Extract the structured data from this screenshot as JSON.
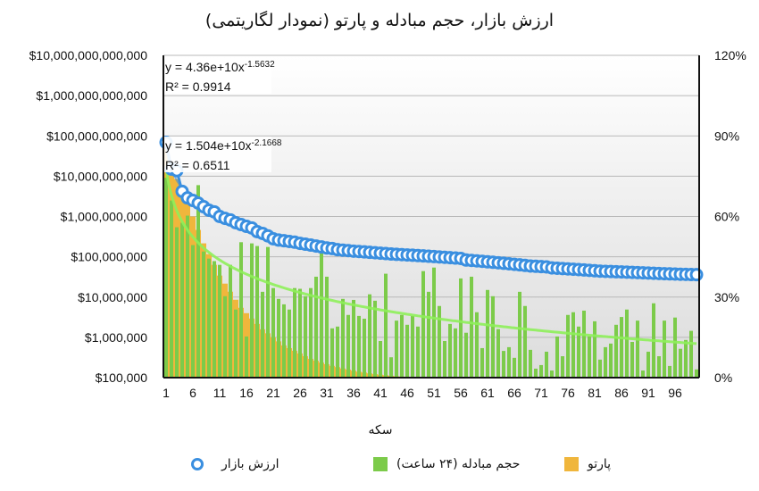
{
  "chart_data": {
    "type": "bar+line",
    "title": "ارزش بازار، حجم مبادله و پارتو (نمودار لگاریتمی)",
    "xlabel": "سکه",
    "x_ticks": [
      "1",
      "6",
      "11",
      "16",
      "21",
      "26",
      "31",
      "36",
      "41",
      "46",
      "51",
      "56",
      "61",
      "66",
      "71",
      "76",
      "81",
      "86",
      "91",
      "96"
    ],
    "x_range": [
      1,
      100
    ],
    "y_left": {
      "scale": "log",
      "range": [
        100000,
        10000000000000
      ],
      "ticks": [
        "$100,000",
        "$1,000,000",
        "$10,000,000",
        "$100,000,000",
        "$1,000,000,000",
        "$10,000,000,000",
        "$100,000,000,000",
        "$1,000,000,000,000",
        "$10,000,000,000,000"
      ]
    },
    "y_right": {
      "range": [
        0,
        120
      ],
      "ticks": [
        "0%",
        "30%",
        "60%",
        "90%",
        "120%"
      ]
    },
    "grid": true,
    "legend_position": "bottom",
    "series": [
      {
        "name": "ارزش بازار",
        "type": "line-markers",
        "axis": "left",
        "color": "#3a8fe0",
        "values": [
          69000000000.0,
          15000000000.0,
          13700000000.0,
          4200000000.0,
          2900000000.0,
          2500000000.0,
          2150000000.0,
          1750000000.0,
          1430000000.0,
          1300000000.0,
          1000000000.0,
          900000000.0,
          820000000.0,
          700000000.0,
          630000000.0,
          570000000.0,
          520000000.0,
          420000000.0,
          380000000.0,
          330000000.0,
          280000000.0,
          260000000.0,
          250000000.0,
          240000000.0,
          230000000.0,
          215000000.0,
          205000000.0,
          195000000.0,
          185000000.0,
          175000000.0,
          165000000.0,
          160000000.0,
          150000000.0,
          146000000.0,
          142000000.0,
          138000000.0,
          135000000.0,
          132000000.0,
          129000000.0,
          126000000.0,
          123000000.0,
          120000000.0,
          117000000.0,
          115000000.0,
          113000000.0,
          111000000.0,
          109000000.0,
          107000000.0,
          105000000.0,
          103000000.0,
          101000000.0,
          99000000.0,
          97000000.0,
          95000000.0,
          93000000.0,
          91000000.0,
          83000000.0,
          81000000.0,
          79000000.0,
          77000000.0,
          75000000.0,
          73000000.0,
          71000000.0,
          69000000.0,
          67000000.0,
          65000000.0,
          63000000.0,
          61000000.0,
          59000000.0,
          58000000.0,
          57000000.0,
          56000000.0,
          53000000.0,
          52000000.0,
          51000000.0,
          50000000.0,
          49000000.0,
          48000000.0,
          47000000.0,
          46000000.0,
          45000000.0,
          44000000.0,
          43500000.0,
          43000000.0,
          42500000.0,
          42000000.0,
          41500000.0,
          41000000.0,
          40500000.0,
          40000000.0,
          39500000.0,
          39000000.0,
          38500000.0,
          38000000.0,
          37600000.0,
          37200000.0,
          36800000.0,
          36500000.0,
          36200000.0,
          36000000.0
        ]
      },
      {
        "name": "حجم مبادله (۲۴ ساعت)",
        "type": "bar",
        "axis": "left",
        "color": "#7ccb4a",
        "values": [
          9100000000.0,
          2500000000.0,
          540000000.0,
          700000000.0,
          1050000000.0,
          195000000.0,
          6000000000.0,
          135000000.0,
          90000000.0,
          78000000.0,
          63000000.0,
          10500000.0,
          63000000.0,
          4900000.0,
          230000000.0,
          1050000.0,
          215000000.0,
          185000000.0,
          13500000.0,
          175000000.0,
          16700000.0,
          9000000.0,
          6600000.0,
          4900000.0,
          16700000.0,
          16000000.0,
          10500000.0,
          16700000.0,
          32000000.0,
          130000000.0,
          32000000.0,
          1670000.0,
          1850000.0,
          9000000.0,
          3600000.0,
          8500000.0,
          3400000.0,
          2900000.0,
          11700000.0,
          8100000.0,
          810000.0,
          38000000.0,
          320000.0,
          2600000.0,
          3600000.0,
          2050000.0,
          3400000.0,
          1850000.0,
          44000000.0,
          13500000.0,
          54000000.0,
          6000000.0,
          810000.0,
          2150000.0,
          1670000.0,
          29000000.0,
          1300000.0,
          32000000.0,
          4200000.0,
          540000.0,
          15000000.0,
          10500000.0,
          1600000.0,
          460000.0,
          570000.0,
          310000.0,
          13500000.0,
          6000000.0,
          490000.0,
          167000.0,
          205000.0,
          440000.0,
          150000.0,
          1050000.0,
          340000.0,
          3600000.0,
          4200000.0,
          1850000.0,
          4600000.0,
          1050000.0,
          2500000.0,
          280000.0,
          570000.0,
          700000.0,
          2050000.0,
          3200000.0,
          4900000.0,
          770000.0,
          2600000.0,
          150000.0,
          440000.0,
          7000000.0,
          340000.0,
          2600000.0,
          195000.0,
          3100000.0,
          520000.0,
          860000.0,
          1450000.0,
          160000.0
        ]
      },
      {
        "name": "پارتو",
        "type": "bar",
        "axis": "right",
        "unit": "%",
        "color": "#f0b63c",
        "values": [
          88,
          80,
          74,
          70,
          65,
          60,
          55,
          50,
          46,
          42,
          38,
          35,
          32,
          29,
          26,
          24,
          22,
          20,
          18,
          16.5,
          15,
          13.5,
          12,
          11,
          10,
          9,
          8,
          7,
          6.3,
          5.6,
          5,
          4.4,
          3.9,
          3.4,
          3,
          2.6,
          2.2,
          1.9,
          1.6,
          1.3,
          1.1,
          0.9,
          0.7,
          0.5,
          0.4,
          0.3,
          0.3,
          0.2,
          0.2,
          0.2,
          0.2,
          0.2,
          0.1,
          0.1,
          0.1,
          0.1,
          0.1,
          0.1,
          0.1,
          0.1,
          0.1,
          0.1,
          0.1,
          0.1,
          0.1,
          0.1,
          0.1,
          0.1,
          0.1,
          0.1,
          0.1,
          0.1,
          0.1,
          0.1,
          0.1,
          0.1,
          0.1,
          0.1,
          0.1,
          0.1,
          0.1,
          0.1,
          0.1,
          0.1,
          0.1,
          0.1,
          0.1,
          0.1,
          0.1,
          0.1,
          0.1,
          0.1,
          0.1,
          0.1,
          0.1,
          0.1,
          0.1,
          0.1,
          0.1,
          0.1
        ]
      }
    ],
    "trendlines": [
      {
        "series": "ارزش بازار",
        "type": "power",
        "a": 43600000000.0,
        "b": -1.5632,
        "equation": "y = 4.36e+10x",
        "exponent": "-1.5632",
        "r2": "R² = 0.9914",
        "color": "#3a8fe0"
      },
      {
        "series": "حجم مبادله (۲۴ ساعت)",
        "type": "power",
        "a": 15040000000.0,
        "b": -2.1668,
        "equation": "y = 1.504e+10x",
        "exponent": "-2.1668",
        "r2": "R² = 0.6511",
        "color": "#8ef05a"
      }
    ]
  }
}
